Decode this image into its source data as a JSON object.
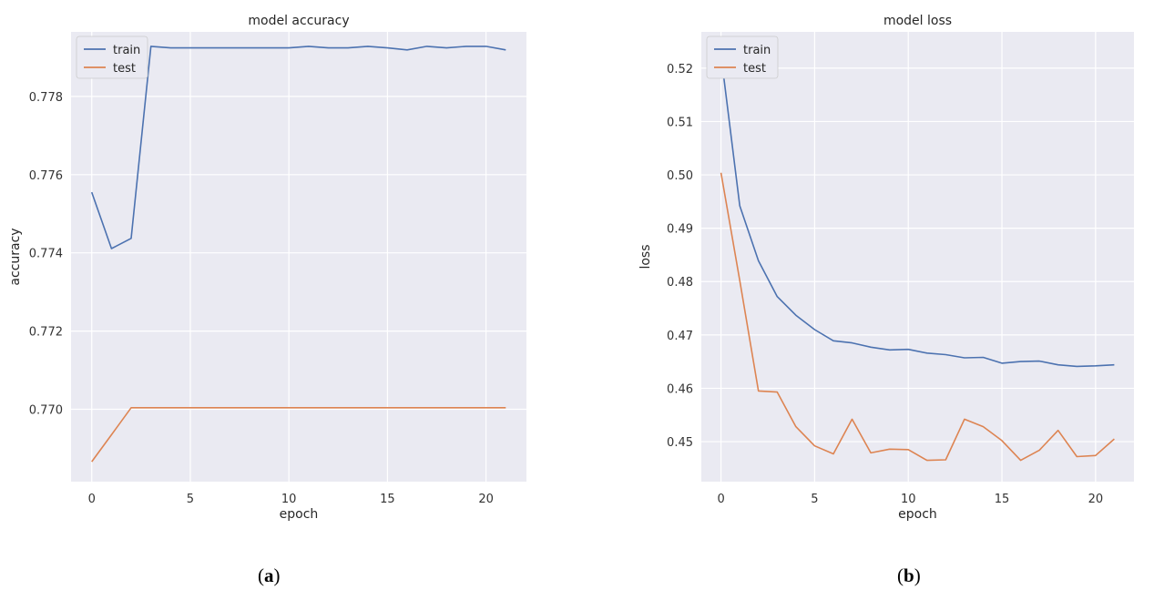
{
  "chart_data": [
    {
      "type": "line",
      "title": "model accuracy",
      "xlabel": "epoch",
      "ylabel": "accuracy",
      "xlim": [
        -1.05,
        22.05
      ],
      "ylim": [
        0.76815,
        0.77965
      ],
      "xticks": [
        0,
        5,
        10,
        15,
        20
      ],
      "xtick_labels": [
        "0",
        "5",
        "10",
        "15",
        "20"
      ],
      "yticks": [
        0.77,
        0.772,
        0.774,
        0.776,
        0.778
      ],
      "ytick_labels": [
        "0.770",
        "0.772",
        "0.774",
        "0.776",
        "0.778"
      ],
      "grid": true,
      "legend_position": "top-left",
      "x": [
        0,
        1,
        2,
        3,
        4,
        5,
        6,
        7,
        8,
        9,
        10,
        11,
        12,
        13,
        14,
        15,
        16,
        17,
        18,
        19,
        20,
        21
      ],
      "series": [
        {
          "name": "train",
          "color": "#4c72b0",
          "values": [
            0.77555,
            0.77411,
            0.77437,
            0.77928,
            0.77924,
            0.77924,
            0.77924,
            0.77924,
            0.77924,
            0.77924,
            0.77924,
            0.77928,
            0.77924,
            0.77924,
            0.77928,
            0.77924,
            0.77919,
            0.77928,
            0.77924,
            0.77928,
            0.77928,
            0.77919
          ]
        },
        {
          "name": "test",
          "color": "#dd8452",
          "values": [
            0.76866,
            0.76935,
            0.77004,
            0.77004,
            0.77004,
            0.77004,
            0.77004,
            0.77004,
            0.77004,
            0.77004,
            0.77004,
            0.77004,
            0.77004,
            0.77004,
            0.77004,
            0.77004,
            0.77004,
            0.77004,
            0.77004,
            0.77004,
            0.77004,
            0.77004
          ]
        }
      ],
      "caption": "a"
    },
    {
      "type": "line",
      "title": "model loss",
      "xlabel": "epoch",
      "ylabel": "loss",
      "xlim": [
        -1.05,
        22.05
      ],
      "ylim": [
        0.4425,
        0.5268
      ],
      "xticks": [
        0,
        5,
        10,
        15,
        20
      ],
      "xtick_labels": [
        "0",
        "5",
        "10",
        "15",
        "20"
      ],
      "yticks": [
        0.45,
        0.46,
        0.47,
        0.48,
        0.49,
        0.5,
        0.51,
        0.52
      ],
      "ytick_labels": [
        "0.45",
        "0.46",
        "0.47",
        "0.48",
        "0.49",
        "0.50",
        "0.51",
        "0.52"
      ],
      "grid": true,
      "legend_position": "top-left",
      "x": [
        0,
        1,
        2,
        3,
        4,
        5,
        6,
        7,
        8,
        9,
        10,
        11,
        12,
        13,
        14,
        15,
        16,
        17,
        18,
        19,
        20,
        21
      ],
      "series": [
        {
          "name": "train",
          "color": "#4c72b0",
          "values": [
            0.5225,
            0.4942,
            0.4839,
            0.4772,
            0.4737,
            0.471,
            0.4689,
            0.4685,
            0.4677,
            0.4672,
            0.4673,
            0.4666,
            0.4663,
            0.4657,
            0.4658,
            0.4647,
            0.465,
            0.4651,
            0.4644,
            0.4641,
            0.4642,
            0.4644
          ]
        },
        {
          "name": "test",
          "color": "#dd8452",
          "values": [
            0.5004,
            0.4802,
            0.4595,
            0.4593,
            0.4528,
            0.4492,
            0.4477,
            0.4542,
            0.4479,
            0.4486,
            0.4485,
            0.4465,
            0.4466,
            0.4542,
            0.4528,
            0.4502,
            0.4465,
            0.4484,
            0.4521,
            0.4472,
            0.4474,
            0.4505
          ]
        }
      ],
      "caption": "b"
    }
  ]
}
